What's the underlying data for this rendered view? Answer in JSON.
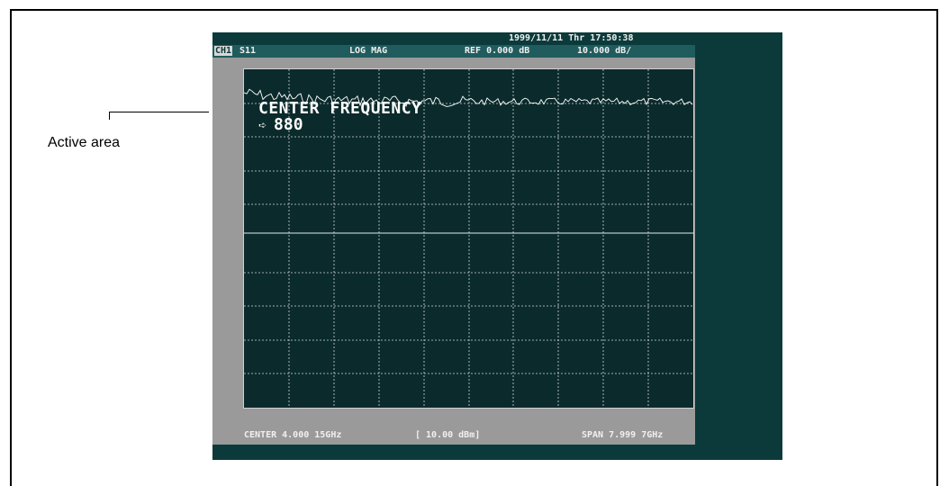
{
  "callout": {
    "label": "Active area"
  },
  "screen": {
    "clock": "1999/11/11 Thr 17:50:38",
    "header": {
      "channel": "CH1",
      "measurement": "S11",
      "format": "LOG MAG",
      "reference": "REF  0.000 dB",
      "scale": "10.000 dB/"
    },
    "entry": {
      "title": "CENTER FREQUENCY",
      "value": "880",
      "arrow_icon": "right-arrow-icon"
    },
    "footer": {
      "center": "CENTER 4.000 15GHz",
      "power": "[ 10.00 dBm]",
      "span": "SPAN 7.999 7GHz"
    },
    "colors": {
      "screen_bg": "#0c3a3b",
      "plot_bg": "#0b2a2b",
      "trace": "#ffffff",
      "panel": "#9a9a9a"
    }
  }
}
